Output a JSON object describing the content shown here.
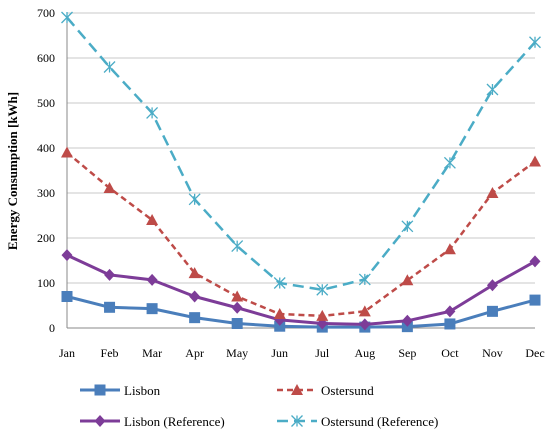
{
  "chart_data": {
    "type": "line",
    "title": "",
    "xlabel": "",
    "ylabel": "Energy Consumption [kWh]",
    "ylim": [
      0,
      700
    ],
    "yticks": [
      0,
      100,
      200,
      300,
      400,
      500,
      600,
      700
    ],
    "grid": "horizontal",
    "legend_position": "bottom",
    "categories": [
      "Jan",
      "Feb",
      "Mar",
      "Apr",
      "May",
      "Jun",
      "Jul",
      "Aug",
      "Sep",
      "Oct",
      "Nov",
      "Dec"
    ],
    "series": [
      {
        "name": "Lisbon",
        "color": "#4a7ebb",
        "marker": "square",
        "dash": "solid",
        "values": [
          70,
          46,
          43,
          23,
          10,
          4,
          2,
          2,
          3,
          9,
          37,
          62
        ]
      },
      {
        "name": "Ostersund",
        "color": "#be4b48",
        "marker": "triangle",
        "dash": "dashed",
        "values": [
          390,
          311,
          240,
          122,
          70,
          31,
          27,
          37,
          106,
          175,
          300,
          370
        ]
      },
      {
        "name": "Lisbon (Reference)",
        "color": "#7d3c98",
        "marker": "diamond",
        "dash": "solid",
        "values": [
          162,
          118,
          107,
          70,
          45,
          18,
          10,
          8,
          16,
          37,
          95,
          148
        ]
      },
      {
        "name": "Ostersund (Reference)",
        "color": "#4bacc6",
        "marker": "asterisk",
        "dash": "longdash",
        "values": [
          690,
          580,
          478,
          286,
          182,
          100,
          85,
          108,
          226,
          367,
          530,
          635
        ]
      }
    ]
  }
}
